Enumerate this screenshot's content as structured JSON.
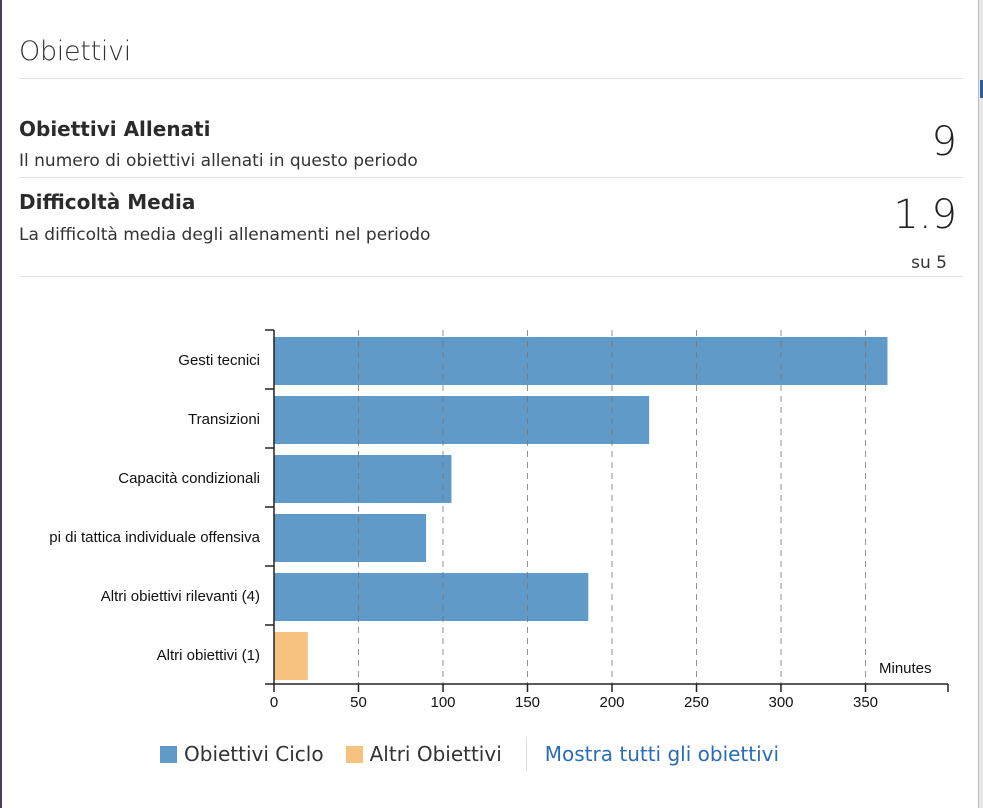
{
  "page": {
    "title": "Obiettivi"
  },
  "stats": [
    {
      "label": "Obiettivi Allenati",
      "description": "Il numero di obiettivi allenati in questo periodo",
      "value": "9"
    },
    {
      "label": "Difficoltà Media",
      "description": "La difficoltà media degli allenamenti nel periodo",
      "value": "1.9",
      "sub": "su 5"
    }
  ],
  "legend": {
    "items": [
      {
        "label": "Obiettivi Ciclo",
        "color": "#5f9ac9"
      },
      {
        "label": "Altri Obiettivi",
        "color": "#f5c27f"
      }
    ],
    "link": "Mostra tutti gli obiettivi"
  },
  "colors": {
    "primary_bar": "#5f9ac9",
    "secondary_bar": "#f5c27f",
    "link": "#2a6db5"
  },
  "chart_data": {
    "type": "bar",
    "orientation": "horizontal",
    "title": "",
    "xlabel": "Minutes",
    "ylabel": "",
    "categories": [
      "Gesti tecnici",
      "Transizioni",
      "Capacità condizionali",
      "pi di tattica individuale offensiva",
      "Altri obiettivi rilevanti (4)",
      "Altri obiettivi (1)"
    ],
    "values": [
      363,
      222,
      105,
      90,
      186,
      20
    ],
    "series_of_category": [
      "Obiettivi Ciclo",
      "Obiettivi Ciclo",
      "Obiettivi Ciclo",
      "Obiettivi Ciclo",
      "Obiettivi Ciclo",
      "Altri Obiettivi"
    ],
    "series": [
      {
        "name": "Obiettivi Ciclo",
        "values": [
          363,
          222,
          105,
          90,
          186,
          null
        ]
      },
      {
        "name": "Altri Obiettivi",
        "values": [
          null,
          null,
          null,
          null,
          null,
          20
        ]
      }
    ],
    "xticks": [
      "0",
      "50",
      "100",
      "150",
      "200",
      "250",
      "300",
      "350"
    ],
    "xlim": [
      0,
      400
    ],
    "grid": "vertical dashed",
    "legend_position": "bottom"
  }
}
